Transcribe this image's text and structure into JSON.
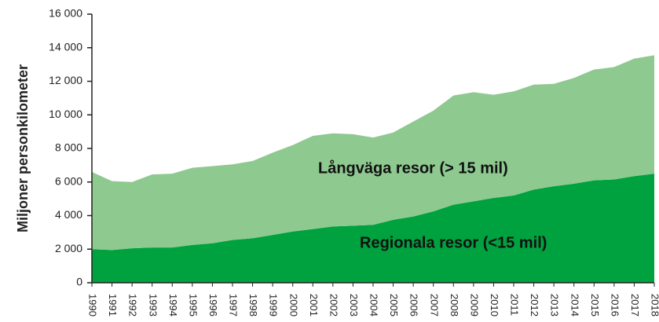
{
  "chart_data": {
    "type": "stacked_area",
    "ylabel": "Miljoner personkilometer",
    "categories": [
      "1990",
      "1991",
      "1992",
      "1993",
      "1994",
      "1995",
      "1996",
      "1997",
      "1998",
      "1999",
      "2000",
      "2001",
      "2002",
      "2003",
      "2004",
      "2005",
      "2006",
      "2007",
      "2008",
      "2009",
      "2010",
      "2011",
      "2012",
      "2013",
      "2014",
      "2015",
      "2016",
      "2017",
      "2018"
    ],
    "series": [
      {
        "name": "Regionala resor (<15 mil)",
        "color": "#00a23f",
        "values": [
          2000,
          1950,
          2050,
          2100,
          2100,
          2250,
          2350,
          2550,
          2650,
          2850,
          3050,
          3200,
          3350,
          3400,
          3450,
          3750,
          3950,
          4250,
          4650,
          4850,
          5050,
          5200,
          5550,
          5750,
          5900,
          6100,
          6150,
          6350,
          6500
        ]
      },
      {
        "name": "Långväga resor (> 15 mil)",
        "color": "#8ec990",
        "values": [
          4600,
          4100,
          3950,
          4350,
          4400,
          4600,
          4600,
          4500,
          4600,
          4900,
          5150,
          5550,
          5550,
          5450,
          5200,
          5200,
          5650,
          6000,
          6500,
          6500,
          6150,
          6200,
          6250,
          6100,
          6300,
          6600,
          6700,
          7000,
          7050
        ]
      }
    ],
    "ylim": [
      0,
      16000
    ],
    "yticks": [
      0,
      {
        "value": 2000,
        "label": "2 000"
      },
      {
        "value": 4000,
        "label": "4 000"
      },
      {
        "value": 6000,
        "label": "6 000"
      },
      {
        "value": 8000,
        "label": "8 000"
      },
      {
        "value": 10000,
        "label": "10 000"
      },
      {
        "value": 12000,
        "label": "12 000"
      },
      {
        "value": 14000,
        "label": "14 000"
      },
      {
        "value": 16000,
        "label": "16 000"
      }
    ]
  }
}
